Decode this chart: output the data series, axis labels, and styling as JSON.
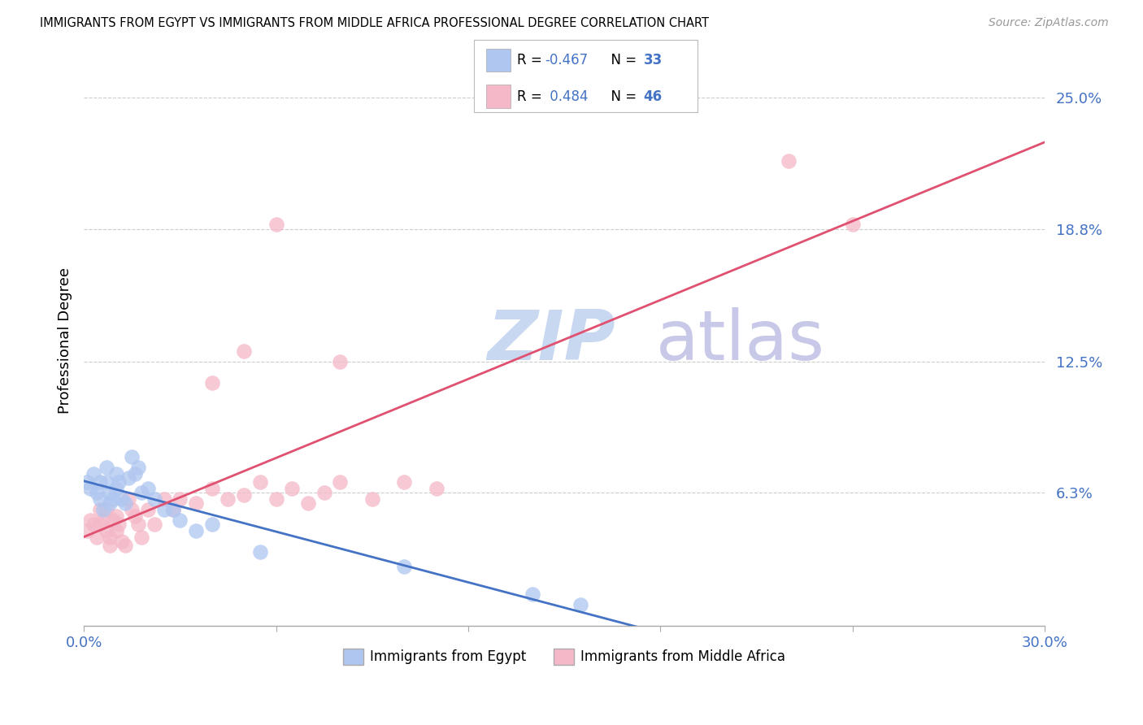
{
  "title": "IMMIGRANTS FROM EGYPT VS IMMIGRANTS FROM MIDDLE AFRICA PROFESSIONAL DEGREE CORRELATION CHART",
  "source": "Source: ZipAtlas.com",
  "ylabel": "Professional Degree",
  "xmin": 0.0,
  "xmax": 0.3,
  "ymin": 0.0,
  "ymax": 0.27,
  "yticks": [
    0.0,
    0.063,
    0.125,
    0.188,
    0.25
  ],
  "ytick_labels": [
    "",
    "6.3%",
    "12.5%",
    "18.8%",
    "25.0%"
  ],
  "xtick_positions": [
    0.0,
    0.06,
    0.12,
    0.18,
    0.24,
    0.3
  ],
  "xtick_labels": [
    "0.0%",
    "",
    "",
    "",
    "",
    "30.0%"
  ],
  "grid_color": "#cccccc",
  "background_color": "#ffffff",
  "axis_color": "#4472c4",
  "egypt_fill_color": "#aec6f0",
  "egypt_line_color": "#4472c4",
  "middle_africa_fill_color": "#f4b8c8",
  "middle_africa_line_color": "#e05070",
  "egypt_R": -0.467,
  "egypt_N": 33,
  "middle_africa_R": 0.484,
  "middle_africa_N": 46,
  "legend_label_egypt": "Immigrants from Egypt",
  "legend_label_africa": "Immigrants from Middle Africa",
  "egypt_x": [
    0.001,
    0.002,
    0.003,
    0.004,
    0.005,
    0.005,
    0.006,
    0.007,
    0.007,
    0.008,
    0.008,
    0.009,
    0.01,
    0.01,
    0.011,
    0.012,
    0.013,
    0.014,
    0.015,
    0.016,
    0.017,
    0.018,
    0.02,
    0.022,
    0.025,
    0.028,
    0.03,
    0.035,
    0.04,
    0.055,
    0.1,
    0.14,
    0.155
  ],
  "egypt_y": [
    0.068,
    0.065,
    0.072,
    0.063,
    0.068,
    0.06,
    0.055,
    0.068,
    0.075,
    0.063,
    0.058,
    0.06,
    0.072,
    0.065,
    0.068,
    0.06,
    0.058,
    0.07,
    0.08,
    0.072,
    0.075,
    0.063,
    0.065,
    0.06,
    0.055,
    0.055,
    0.05,
    0.045,
    0.048,
    0.035,
    0.028,
    0.015,
    0.01
  ],
  "middle_africa_x": [
    0.001,
    0.002,
    0.003,
    0.004,
    0.005,
    0.005,
    0.006,
    0.007,
    0.007,
    0.008,
    0.008,
    0.009,
    0.01,
    0.01,
    0.011,
    0.012,
    0.013,
    0.014,
    0.015,
    0.016,
    0.017,
    0.018,
    0.02,
    0.022,
    0.025,
    0.028,
    0.03,
    0.035,
    0.04,
    0.045,
    0.05,
    0.055,
    0.06,
    0.065,
    0.07,
    0.075,
    0.08,
    0.09,
    0.1,
    0.11,
    0.04,
    0.05,
    0.06,
    0.08,
    0.22,
    0.24
  ],
  "middle_africa_y": [
    0.045,
    0.05,
    0.048,
    0.042,
    0.055,
    0.048,
    0.05,
    0.055,
    0.045,
    0.042,
    0.038,
    0.05,
    0.045,
    0.052,
    0.048,
    0.04,
    0.038,
    0.06,
    0.055,
    0.052,
    0.048,
    0.042,
    0.055,
    0.048,
    0.06,
    0.055,
    0.06,
    0.058,
    0.065,
    0.06,
    0.062,
    0.068,
    0.06,
    0.065,
    0.058,
    0.063,
    0.068,
    0.06,
    0.068,
    0.065,
    0.115,
    0.13,
    0.19,
    0.125,
    0.22,
    0.19
  ],
  "watermark_zip_color": "#c8d8f0",
  "watermark_atlas_color": "#c8c8e8"
}
